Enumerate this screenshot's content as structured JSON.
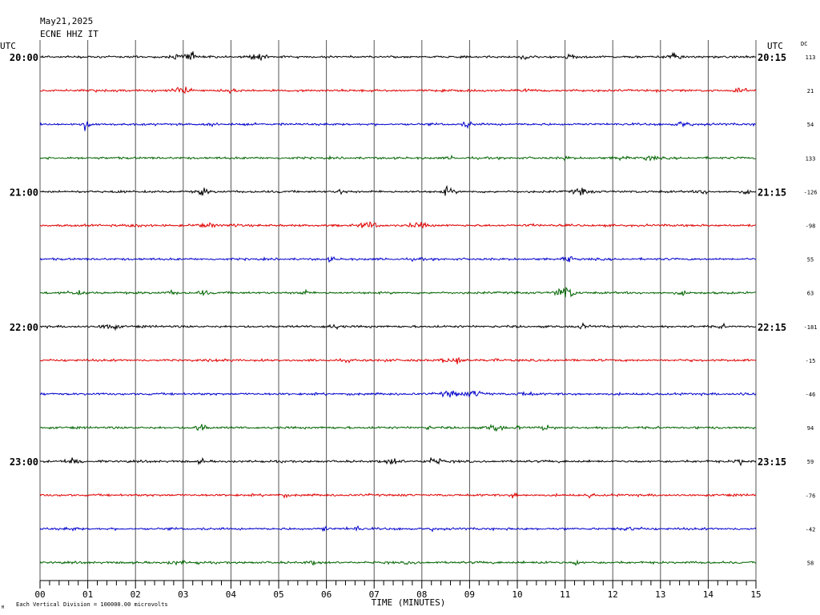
{
  "header": {
    "date": "May21,2025",
    "station": "ECNE HHZ IT",
    "left_utc": "UTC",
    "right_utc": "UTC",
    "dc_label": "DC"
  },
  "footer": {
    "scale_note": "Each Vertical Division = 100000.00 microvolts",
    "corner_mark": "M"
  },
  "chart_data": {
    "type": "line",
    "title": "",
    "xlabel": "TIME (MINUTES)",
    "ylabel": "",
    "xlim": [
      0,
      15
    ],
    "x_tick_labels": [
      "00",
      "01",
      "02",
      "03",
      "04",
      "05",
      "06",
      "07",
      "08",
      "09",
      "10",
      "11",
      "12",
      "13",
      "14",
      "15"
    ],
    "grid": true,
    "trace_colors": [
      "#000000",
      "#e00000",
      "#0000cc",
      "#006400"
    ],
    "traces": [
      {
        "start_time": "20:00",
        "dc": "113"
      },
      {
        "start_time": "",
        "dc": "21"
      },
      {
        "start_time": "",
        "dc": "54"
      },
      {
        "start_time": "",
        "dc": "133"
      },
      {
        "start_time": "21:00",
        "dc": "-126"
      },
      {
        "start_time": "",
        "dc": "-98"
      },
      {
        "start_time": "",
        "dc": "55"
      },
      {
        "start_time": "",
        "dc": "63"
      },
      {
        "start_time": "22:00",
        "dc": "-181"
      },
      {
        "start_time": "",
        "dc": "-15"
      },
      {
        "start_time": "",
        "dc": "-46"
      },
      {
        "start_time": "",
        "dc": "94"
      },
      {
        "start_time": "23:00",
        "dc": "59"
      },
      {
        "start_time": "",
        "dc": "-76"
      },
      {
        "start_time": "",
        "dc": "-42"
      },
      {
        "start_time": "",
        "dc": "58"
      }
    ],
    "right_time_labels": [
      {
        "row": 0,
        "label": "20:15"
      },
      {
        "row": 4,
        "label": "21:15"
      },
      {
        "row": 8,
        "label": "22:15"
      },
      {
        "row": 12,
        "label": "23:15"
      }
    ]
  }
}
